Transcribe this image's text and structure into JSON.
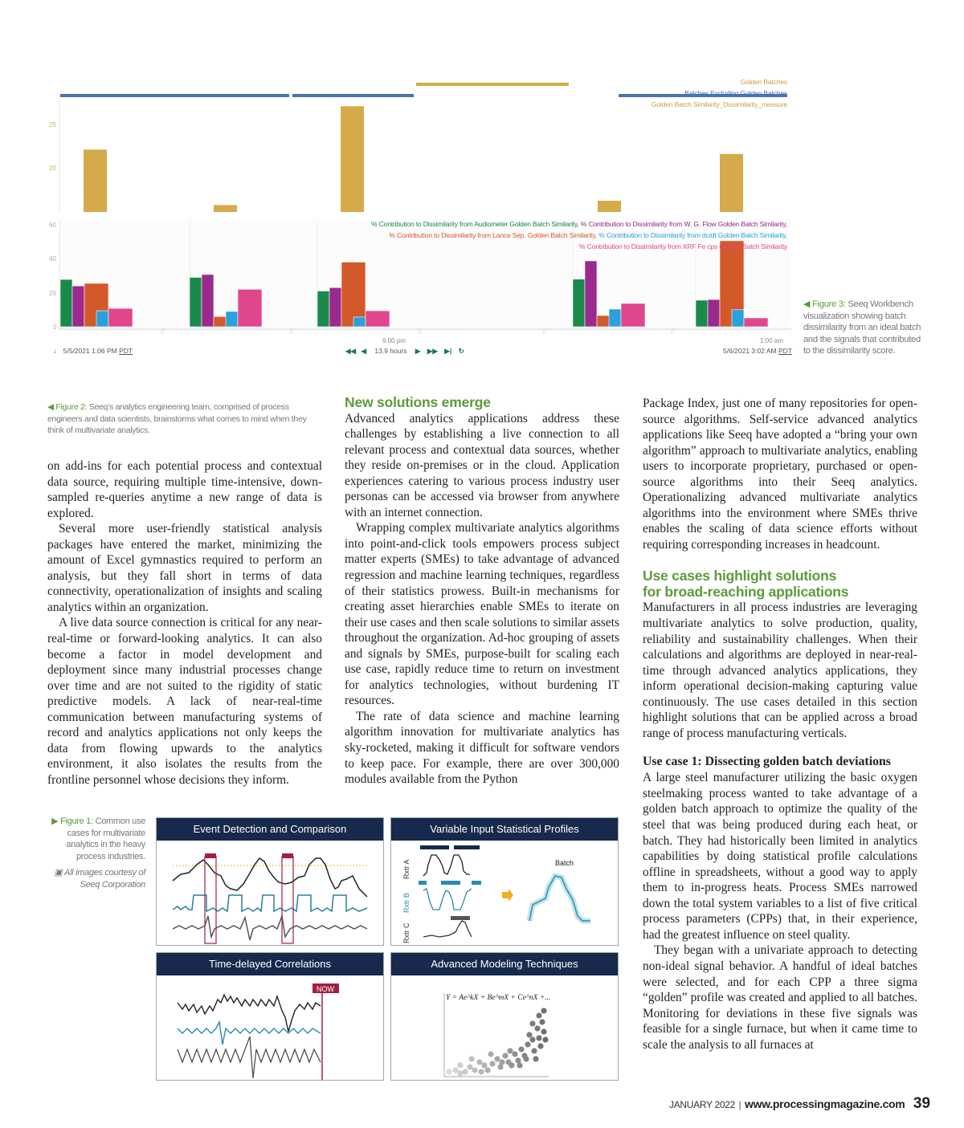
{
  "chart_data": {
    "type": "bar",
    "title": "",
    "upper_panel": {
      "legend": [
        "Golden Batches",
        "Batches Excluding Golden Batches",
        "Golden Batch Similarity_Dissimilarity_measure"
      ],
      "y_ticks": [
        "20",
        "25"
      ],
      "ylim": [
        15,
        28
      ],
      "values": [
        22.1,
        15.7,
        27.1,
        16.2,
        21.6
      ]
    },
    "lower_panel": {
      "y_ticks": [
        "0",
        "20",
        "40",
        "60"
      ],
      "ylim": [
        0,
        62
      ],
      "series": [
        {
          "name": "% Contribution to Dissimilarity from Audiometer Golden Batch Similarity,",
          "color": "#1a8a4a",
          "values": [
            27.8,
            29,
            21,
            28,
            15.6
          ]
        },
        {
          "name": "% Contribution to Dissimilarity from W. G. Flow Golden Batch Similarity,",
          "color": "#9b2a8e",
          "values": [
            24,
            30.7,
            23,
            38.7,
            16
          ]
        },
        {
          "name": "% Contribution to Dissimilarity from Lance Sep. Golden Batch Similarity,",
          "color": "#d4592a",
          "values": [
            25.5,
            6,
            38,
            6.6,
            50.5
          ]
        },
        {
          "name": "% Contribution to Dissimilarity from dc/dt Golden Batch Similarity,",
          "color": "#2aa0dc",
          "values": [
            9.4,
            9,
            5.7,
            10.4,
            10
          ]
        },
        {
          "name": "% Contribution to Dissimilarity from XRF Fe cps Golden Batch Similarity",
          "color": "#e0468c",
          "values": [
            10.8,
            22,
            9.4,
            13.7,
            5.2
          ]
        }
      ]
    },
    "x_ticks": [
      "6:00 pm",
      "1:00 am"
    ],
    "colors": {
      "gold": "#d4aa4a",
      "batch_blue": "#4a72b0"
    }
  },
  "timebar": {
    "start": "5/5/2021 1:06 PM",
    "start_tz": "PDT",
    "duration": "13.9 hours",
    "end": "5/6/2021 3:02 AM",
    "end_tz": "PDT"
  },
  "figure3_caption": {
    "label": "Figure 3:",
    "text": " Seeq Workbench visualization showing batch dissimilarity from an ideal batch and the signals that contributed to the dissimilarity score."
  },
  "figure2_caption": {
    "label": "Figure 2:",
    "text": " Seeq’s analytics engineering team, comprised of process engineers and data scientists, brainstorms what comes to mind when they think of multivariate analytics."
  },
  "figure1_caption": {
    "label": "Figure 1:",
    "text": " Common use cases for multivariate analytics in the heavy process industries.",
    "credit": "All images courtesy of Seeq Corporation"
  },
  "figure1_panels": {
    "p1": "Event Detection and Comparison",
    "p2": "Variable Input Statistical Profiles",
    "p3": "Time-delayed Correlations",
    "p4": "Advanced Modeling Techniques",
    "rxtr_a": "Rxtr A",
    "rxtr_b": "Rxtr B",
    "rxtr_c": "Rxtr C",
    "batch": "Batch",
    "now": "NOW",
    "equation": "Y = Ae^kX + Be^mX + Ce^nX +..."
  },
  "col1": {
    "p1": "on add-ins for each potential process and contextual data source, requiring multiple time-intensive, down-sampled re-queries anytime a new range of data is explored.",
    "p2": "Several more user-friendly statistical analysis packages have entered the market, minimizing the amount of Excel gymnastics required to perform an analysis, but they fall short in terms of data connectivity, operationalization of insights and scaling analytics within an organization.",
    "p3": "A live data source connection is critical for any near-real-time or forward-looking analytics. It can also become a factor in model development and deployment since many industrial processes change over time and are not suited to the rigidity of static predictive models. A lack of near-real-time communication between manufacturing systems of record and analytics applications not only keeps the data from flowing upwards to the analytics environment, it also isolates the results from the frontline personnel whose decisions they inform."
  },
  "col2": {
    "heading": "New solutions emerge",
    "p1": "Advanced analytics applications address these challenges by establishing a live connection to all relevant process and contextual data sources, whether they reside on-premises or in the cloud. Application experiences catering to various process industry user personas can be accessed via browser from anywhere with an internet connection.",
    "p2": "Wrapping complex multivariate analytics algorithms into point-and-click tools empowers process subject matter experts (SMEs) to take advantage of advanced regression and machine learning techniques, regardless of their statistics prowess. Built-in mechanisms for creating asset hierarchies enable SMEs to iterate on their use cases and then scale solutions to similar assets throughout the organization. Ad-hoc grouping of assets and signals by SMEs, purpose-built for scaling each use case, rapidly reduce time to return on investment for analytics technologies, without burdening IT resources.",
    "p3": "The rate of data science and machine learning algorithm innovation for multivariate analytics has sky-rocketed, making it difficult for software vendors to keep pace. For example, there are over 300,000 modules available from the Python"
  },
  "col3": {
    "p1": "Package Index, just one of many repositories for open-source algorithms. Self-service advanced analytics applications like Seeq have adopted a “bring your own algorithm” approach to multivariate analytics, enabling users to incorporate proprietary, purchased or open-source algorithms into their Seeq analytics. Operationalizing advanced multivariate analytics algorithms into the environment where SMEs thrive enables the scaling of data science efforts without requiring corresponding increases in headcount.",
    "heading_line1": "Use cases highlight solutions",
    "heading_line2": "for broad-reaching applications",
    "p2": "Manufacturers in all process industries are leveraging multivariate analytics to solve production, quality, reliability and sustainability challenges. When their calculations and algorithms are deployed in near-real-time through advanced analytics applications, they inform operational decision-making capturing value continuously. The use cases detailed in this section highlight solutions that can be applied across a broad range of process manufacturing verticals.",
    "subheading": "Use case 1: Dissecting golden batch deviations",
    "p3": "A large steel manufacturer utilizing the basic oxygen steelmaking process wanted to take advantage of a golden batch approach to optimize the quality of the steel that was being produced during each heat, or batch. They had historically been limited in analytics capabilities by doing statistical profile calculations offline in spreadsheets, without a good way to apply them to in-progress heats. Process SMEs narrowed down the total system variables to a list of five critical process parameters (CPPs) that, in their experience, had the greatest influence on steel quality.",
    "p4": "They began with a univariate approach to detecting non-ideal signal behavior. A handful of ideal batches were selected, and for each CPP a three sigma “golden” profile was created and applied to all batches. Monitoring for deviations in these five signals was feasible for a single furnace, but when it came time to scale the analysis to all furnaces at"
  },
  "footer": {
    "date": "JANUARY 2022",
    "url": "www.processingmagazine.com",
    "page": "39"
  }
}
